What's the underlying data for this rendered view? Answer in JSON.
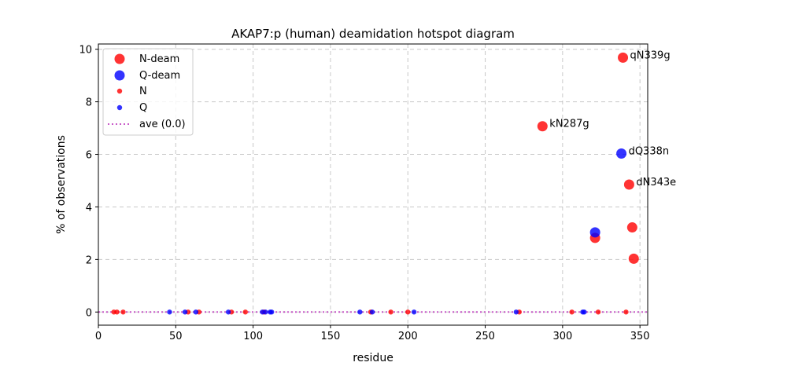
{
  "chart_data": {
    "type": "scatter",
    "title": "AKAP7:p (human) deamidation hotspot diagram",
    "xlabel": "residue",
    "ylabel": "% of observations",
    "xlim": [
      0,
      355
    ],
    "ylim": [
      -0.5,
      10.2
    ],
    "xticks": [
      0,
      50,
      100,
      150,
      200,
      250,
      300,
      350
    ],
    "yticks": [
      0,
      2,
      4,
      6,
      8,
      10
    ],
    "grid": true,
    "legend_position": "top-left",
    "colors": {
      "N": "#ff0000",
      "Q": "#0000ff",
      "ave": "#bf40bf"
    },
    "series": [
      {
        "name": "N-deam",
        "marker": "large",
        "color": "#ff0000",
        "points": [
          {
            "x": 287,
            "y": 7.07,
            "label": "kN287g"
          },
          {
            "x": 339,
            "y": 9.68,
            "label": "qN339g"
          },
          {
            "x": 343,
            "y": 4.85,
            "label": "dN343e"
          },
          {
            "x": 345,
            "y": 3.22,
            "label": ""
          },
          {
            "x": 346,
            "y": 2.03,
            "label": ""
          },
          {
            "x": 321,
            "y": 2.82,
            "label": ""
          }
        ]
      },
      {
        "name": "Q-deam",
        "marker": "large",
        "color": "#0000ff",
        "points": [
          {
            "x": 338,
            "y": 6.03,
            "label": "dQ338n"
          },
          {
            "x": 321,
            "y": 3.03,
            "label": ""
          }
        ]
      },
      {
        "name": "N",
        "marker": "small",
        "color": "#ff0000",
        "points": [
          {
            "x": 10,
            "y": 0
          },
          {
            "x": 12,
            "y": 0
          },
          {
            "x": 16,
            "y": 0
          },
          {
            "x": 58,
            "y": 0
          },
          {
            "x": 65,
            "y": 0
          },
          {
            "x": 86,
            "y": 0
          },
          {
            "x": 95,
            "y": 0
          },
          {
            "x": 107,
            "y": 0
          },
          {
            "x": 176,
            "y": 0
          },
          {
            "x": 189,
            "y": 0
          },
          {
            "x": 200,
            "y": 0
          },
          {
            "x": 272,
            "y": 0
          },
          {
            "x": 306,
            "y": 0
          },
          {
            "x": 323,
            "y": 0
          },
          {
            "x": 341,
            "y": 0
          }
        ]
      },
      {
        "name": "Q",
        "marker": "small",
        "color": "#0000ff",
        "points": [
          {
            "x": 46,
            "y": 0
          },
          {
            "x": 56,
            "y": 0
          },
          {
            "x": 63,
            "y": 0
          },
          {
            "x": 84,
            "y": 0
          },
          {
            "x": 106,
            "y": 0
          },
          {
            "x": 108,
            "y": 0
          },
          {
            "x": 111,
            "y": 0
          },
          {
            "x": 112,
            "y": 0
          },
          {
            "x": 169,
            "y": 0
          },
          {
            "x": 177,
            "y": 0
          },
          {
            "x": 204,
            "y": 0
          },
          {
            "x": 270,
            "y": 0
          },
          {
            "x": 313,
            "y": 0
          },
          {
            "x": 314,
            "y": 0
          }
        ]
      }
    ],
    "average": {
      "name": "ave (0.0)",
      "value": 0.0
    }
  }
}
